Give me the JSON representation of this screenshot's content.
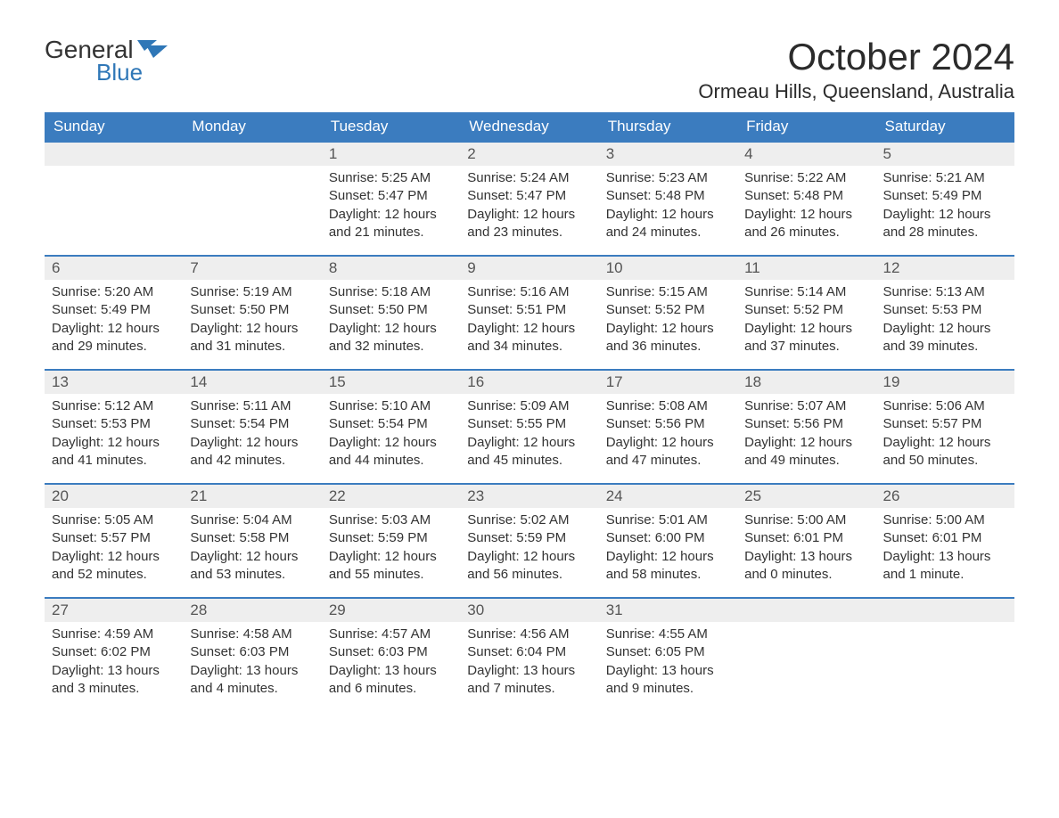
{
  "brand": {
    "general": "General",
    "blue": "Blue"
  },
  "title": "October 2024",
  "location": "Ormeau Hills, Queensland, Australia",
  "colors": {
    "header_bg": "#3b7cbf",
    "header_text": "#ffffff",
    "daynum_bg": "#eeeeee",
    "row_border": "#3b7cbf",
    "brand_blue": "#2f77b7",
    "text": "#333333",
    "background": "#ffffff"
  },
  "fonts": {
    "title_size": 42,
    "location_size": 22,
    "header_size": 17,
    "body_size": 15
  },
  "weekdays": [
    "Sunday",
    "Monday",
    "Tuesday",
    "Wednesday",
    "Thursday",
    "Friday",
    "Saturday"
  ],
  "labels": {
    "sunrise": "Sunrise: ",
    "sunset": "Sunset: ",
    "daylight_prefix": "Daylight: "
  },
  "weeks": [
    [
      {
        "day": "",
        "empty": true
      },
      {
        "day": "",
        "empty": true
      },
      {
        "day": "1",
        "sunrise": "5:25 AM",
        "sunset": "5:47 PM",
        "daylight": "12 hours and 21 minutes."
      },
      {
        "day": "2",
        "sunrise": "5:24 AM",
        "sunset": "5:47 PM",
        "daylight": "12 hours and 23 minutes."
      },
      {
        "day": "3",
        "sunrise": "5:23 AM",
        "sunset": "5:48 PM",
        "daylight": "12 hours and 24 minutes."
      },
      {
        "day": "4",
        "sunrise": "5:22 AM",
        "sunset": "5:48 PM",
        "daylight": "12 hours and 26 minutes."
      },
      {
        "day": "5",
        "sunrise": "5:21 AM",
        "sunset": "5:49 PM",
        "daylight": "12 hours and 28 minutes."
      }
    ],
    [
      {
        "day": "6",
        "sunrise": "5:20 AM",
        "sunset": "5:49 PM",
        "daylight": "12 hours and 29 minutes."
      },
      {
        "day": "7",
        "sunrise": "5:19 AM",
        "sunset": "5:50 PM",
        "daylight": "12 hours and 31 minutes."
      },
      {
        "day": "8",
        "sunrise": "5:18 AM",
        "sunset": "5:50 PM",
        "daylight": "12 hours and 32 minutes."
      },
      {
        "day": "9",
        "sunrise": "5:16 AM",
        "sunset": "5:51 PM",
        "daylight": "12 hours and 34 minutes."
      },
      {
        "day": "10",
        "sunrise": "5:15 AM",
        "sunset": "5:52 PM",
        "daylight": "12 hours and 36 minutes."
      },
      {
        "day": "11",
        "sunrise": "5:14 AM",
        "sunset": "5:52 PM",
        "daylight": "12 hours and 37 minutes."
      },
      {
        "day": "12",
        "sunrise": "5:13 AM",
        "sunset": "5:53 PM",
        "daylight": "12 hours and 39 minutes."
      }
    ],
    [
      {
        "day": "13",
        "sunrise": "5:12 AM",
        "sunset": "5:53 PM",
        "daylight": "12 hours and 41 minutes."
      },
      {
        "day": "14",
        "sunrise": "5:11 AM",
        "sunset": "5:54 PM",
        "daylight": "12 hours and 42 minutes."
      },
      {
        "day": "15",
        "sunrise": "5:10 AM",
        "sunset": "5:54 PM",
        "daylight": "12 hours and 44 minutes."
      },
      {
        "day": "16",
        "sunrise": "5:09 AM",
        "sunset": "5:55 PM",
        "daylight": "12 hours and 45 minutes."
      },
      {
        "day": "17",
        "sunrise": "5:08 AM",
        "sunset": "5:56 PM",
        "daylight": "12 hours and 47 minutes."
      },
      {
        "day": "18",
        "sunrise": "5:07 AM",
        "sunset": "5:56 PM",
        "daylight": "12 hours and 49 minutes."
      },
      {
        "day": "19",
        "sunrise": "5:06 AM",
        "sunset": "5:57 PM",
        "daylight": "12 hours and 50 minutes."
      }
    ],
    [
      {
        "day": "20",
        "sunrise": "5:05 AM",
        "sunset": "5:57 PM",
        "daylight": "12 hours and 52 minutes."
      },
      {
        "day": "21",
        "sunrise": "5:04 AM",
        "sunset": "5:58 PM",
        "daylight": "12 hours and 53 minutes."
      },
      {
        "day": "22",
        "sunrise": "5:03 AM",
        "sunset": "5:59 PM",
        "daylight": "12 hours and 55 minutes."
      },
      {
        "day": "23",
        "sunrise": "5:02 AM",
        "sunset": "5:59 PM",
        "daylight": "12 hours and 56 minutes."
      },
      {
        "day": "24",
        "sunrise": "5:01 AM",
        "sunset": "6:00 PM",
        "daylight": "12 hours and 58 minutes."
      },
      {
        "day": "25",
        "sunrise": "5:00 AM",
        "sunset": "6:01 PM",
        "daylight": "13 hours and 0 minutes."
      },
      {
        "day": "26",
        "sunrise": "5:00 AM",
        "sunset": "6:01 PM",
        "daylight": "13 hours and 1 minute."
      }
    ],
    [
      {
        "day": "27",
        "sunrise": "4:59 AM",
        "sunset": "6:02 PM",
        "daylight": "13 hours and 3 minutes."
      },
      {
        "day": "28",
        "sunrise": "4:58 AM",
        "sunset": "6:03 PM",
        "daylight": "13 hours and 4 minutes."
      },
      {
        "day": "29",
        "sunrise": "4:57 AM",
        "sunset": "6:03 PM",
        "daylight": "13 hours and 6 minutes."
      },
      {
        "day": "30",
        "sunrise": "4:56 AM",
        "sunset": "6:04 PM",
        "daylight": "13 hours and 7 minutes."
      },
      {
        "day": "31",
        "sunrise": "4:55 AM",
        "sunset": "6:05 PM",
        "daylight": "13 hours and 9 minutes."
      },
      {
        "day": "",
        "empty": true
      },
      {
        "day": "",
        "empty": true
      }
    ]
  ]
}
